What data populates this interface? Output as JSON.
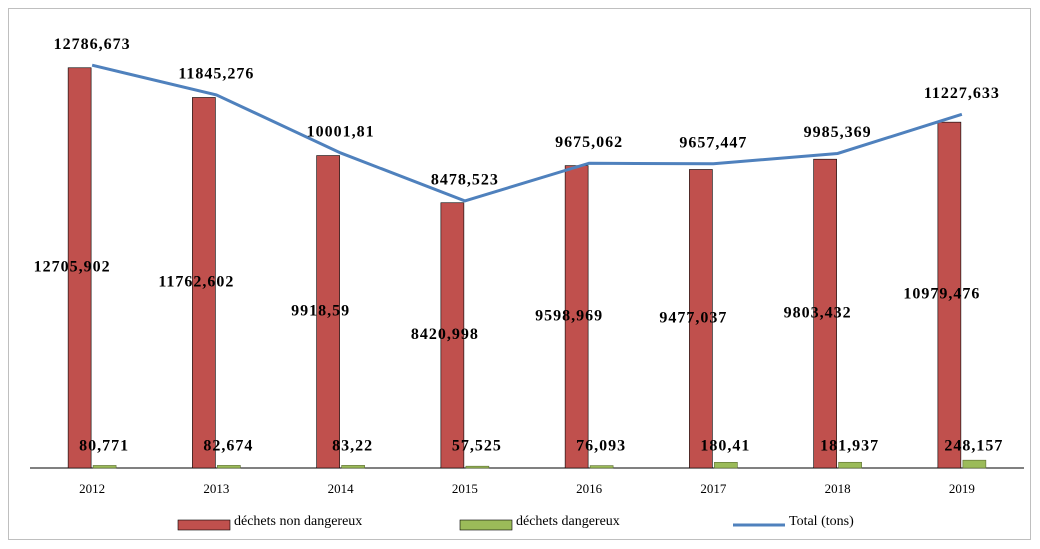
{
  "chart_data": {
    "type": "bar",
    "categories": [
      "2012",
      "2013",
      "2014",
      "2015",
      "2016",
      "2017",
      "2018",
      "2019"
    ],
    "ylim": [
      0,
      14000
    ],
    "series": [
      {
        "name": "déchets non dangereux",
        "color": "#c0504d",
        "values": [
          12705.902,
          11762.602,
          9918.59,
          8420.998,
          9598.969,
          9477.037,
          9803.432,
          10979.476
        ],
        "value_labels": [
          "12705,902",
          "11762,602",
          "9918,59",
          "8420,998",
          "9598,969",
          "9477,037",
          "9803,432",
          "10979,476"
        ]
      },
      {
        "name": "déchets dangereux",
        "color": "#9bbb59",
        "values": [
          80.771,
          82.674,
          83.22,
          57.525,
          76.093,
          180.41,
          181.937,
          248.157
        ],
        "value_labels": [
          "80,771",
          "82,674",
          "83,22",
          "57,525",
          "76,093",
          "180,41",
          "181,937",
          "248,157"
        ]
      },
      {
        "name": "Total (tons)",
        "color": "#4f81bd",
        "type": "line",
        "values": [
          12786.673,
          11845.276,
          10001.81,
          8478.523,
          9675.062,
          9657.447,
          9985.369,
          11227.633
        ],
        "value_labels": [
          "12786,673",
          "11845,276",
          "10001,81",
          "8478,523",
          "9675,062",
          "9657,447",
          "9985,369",
          "11227,633"
        ]
      }
    ]
  }
}
